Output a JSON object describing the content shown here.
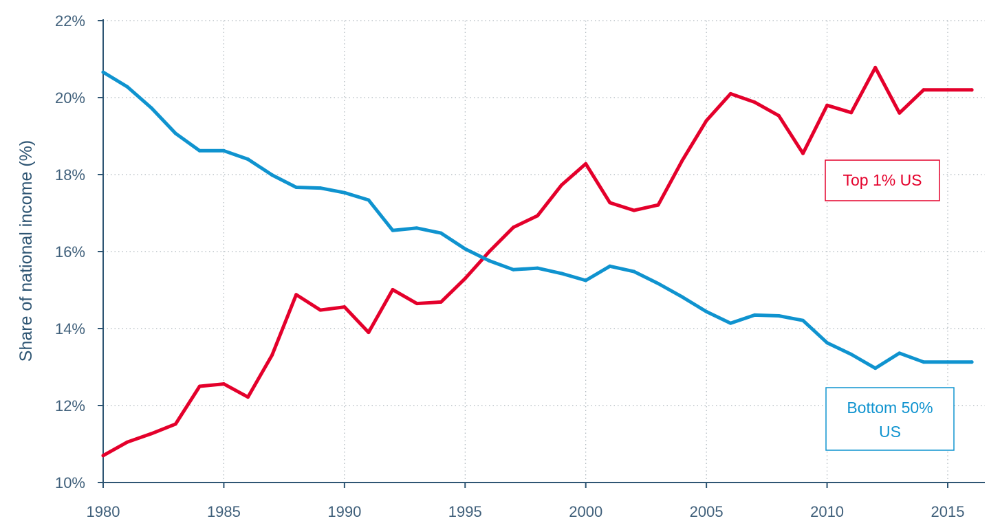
{
  "chart_data": {
    "type": "line",
    "title": "",
    "xlabel": "",
    "ylabel": "Share of national income (%)",
    "xlim": [
      1980,
      2016
    ],
    "ylim": [
      10,
      22
    ],
    "x_ticks": [
      1980,
      1985,
      1990,
      1995,
      2000,
      2005,
      2010,
      2015
    ],
    "x_tick_labels": [
      "1980",
      "1985",
      "1990",
      "1995",
      "2000",
      "2005",
      "2010",
      "2015"
    ],
    "y_ticks": [
      10,
      12,
      14,
      16,
      18,
      20,
      22
    ],
    "y_tick_labels": [
      "10%",
      "12%",
      "14%",
      "16%",
      "18%",
      "20%",
      "22%"
    ],
    "grid": "horizontal dotted",
    "x": [
      1980,
      1981,
      1982,
      1983,
      1984,
      1985,
      1986,
      1987,
      1988,
      1989,
      1990,
      1991,
      1992,
      1993,
      1994,
      1995,
      1996,
      1997,
      1998,
      1999,
      2000,
      2001,
      2002,
      2003,
      2004,
      2005,
      2006,
      2007,
      2008,
      2009,
      2010,
      2011,
      2012,
      2013,
      2014,
      2015,
      2016
    ],
    "series": [
      {
        "name": "Top 1% US",
        "color": "#e4002b",
        "values": [
          10.7,
          11.05,
          11.27,
          11.52,
          12.5,
          12.56,
          12.22,
          13.31,
          14.88,
          14.48,
          14.56,
          13.9,
          15.01,
          14.65,
          14.69,
          15.3,
          16.0,
          16.63,
          16.93,
          17.73,
          18.28,
          17.27,
          17.07,
          17.21,
          18.37,
          19.4,
          20.1,
          19.88,
          19.53,
          18.55,
          19.8,
          19.61,
          20.78,
          19.6,
          20.2,
          20.2,
          20.2
        ]
      },
      {
        "name": "Bottom 50% US",
        "color": "#0f93cf",
        "values": [
          20.66,
          20.28,
          19.73,
          19.07,
          18.62,
          18.62,
          18.4,
          17.99,
          17.67,
          17.65,
          17.53,
          17.34,
          16.55,
          16.61,
          16.48,
          16.07,
          15.76,
          15.53,
          15.57,
          15.43,
          15.25,
          15.62,
          15.48,
          15.17,
          14.82,
          14.44,
          14.14,
          14.35,
          14.33,
          14.21,
          13.63,
          13.33,
          12.97,
          13.36,
          13.13,
          13.13,
          13.13
        ]
      }
    ],
    "annotations": [
      {
        "text": "Top 1% US",
        "color": "#e4002b"
      },
      {
        "text": "Bottom 50%",
        "text2": "US",
        "color": "#0f93cf"
      }
    ],
    "axis_color": "#2e5573",
    "grid_color": "#9aa5ad"
  }
}
